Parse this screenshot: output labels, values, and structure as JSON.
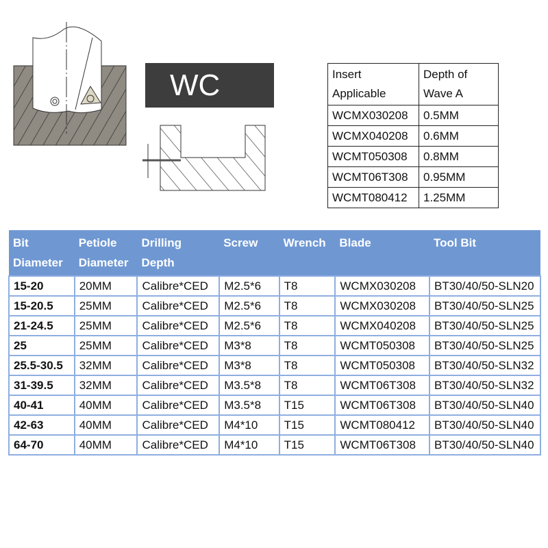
{
  "logo_text": "WC",
  "insert_table": {
    "headers": [
      "Insert Applicable",
      "Depth of Wave A"
    ],
    "rows": [
      [
        "WCMX030208",
        "0.5MM"
      ],
      [
        "WCMX040208",
        "0.6MM"
      ],
      [
        "WCMT050308",
        "0.8MM"
      ],
      [
        "WCMT06T308",
        "0.95MM"
      ],
      [
        "WCMT080412",
        "1.25MM"
      ]
    ]
  },
  "spec_table": {
    "headers": [
      "Bit Diameter",
      "Petiole Diameter",
      "Drilling Depth",
      "Screw",
      "Wrench",
      "Blade",
      "Tool Bit"
    ],
    "header_color": "#6f98d3",
    "rows": [
      [
        "15-20",
        "20MM",
        "Calibre*CED",
        "M2.5*6",
        "T8",
        "WCMX030208",
        "BT30/40/50-SLN20"
      ],
      [
        "15-20.5",
        "25MM",
        "Calibre*CED",
        "M2.5*6",
        "T8",
        "WCMX030208",
        "BT30/40/50-SLN25"
      ],
      [
        "21-24.5",
        "25MM",
        "Calibre*CED",
        "M2.5*6",
        "T8",
        "WCMX040208",
        "BT30/40/50-SLN25"
      ],
      [
        "25",
        "25MM",
        "Calibre*CED",
        "M3*8",
        "T8",
        "WCMT050308",
        "BT30/40/50-SLN25"
      ],
      [
        "25.5-30.5",
        "32MM",
        "Calibre*CED",
        "M3*8",
        "T8",
        "WCMT050308",
        "BT30/40/50-SLN32"
      ],
      [
        "31-39.5",
        "32MM",
        "Calibre*CED",
        "M3.5*8",
        "T8",
        "WCMT06T308",
        "BT30/40/50-SLN32"
      ],
      [
        "40-41",
        "40MM",
        "Calibre*CED",
        "M3.5*8",
        "T15",
        "WCMT06T308",
        "BT30/40/50-SLN40"
      ],
      [
        "42-63",
        "40MM",
        "Calibre*CED",
        "M4*10",
        "T15",
        "WCMT080412",
        "BT30/40/50-SLN40"
      ],
      [
        "64-70",
        "40MM",
        "Calibre*CED",
        "M4*10",
        "T15",
        "WCMT06T308",
        "BT30/40/50-SLN40"
      ]
    ]
  }
}
